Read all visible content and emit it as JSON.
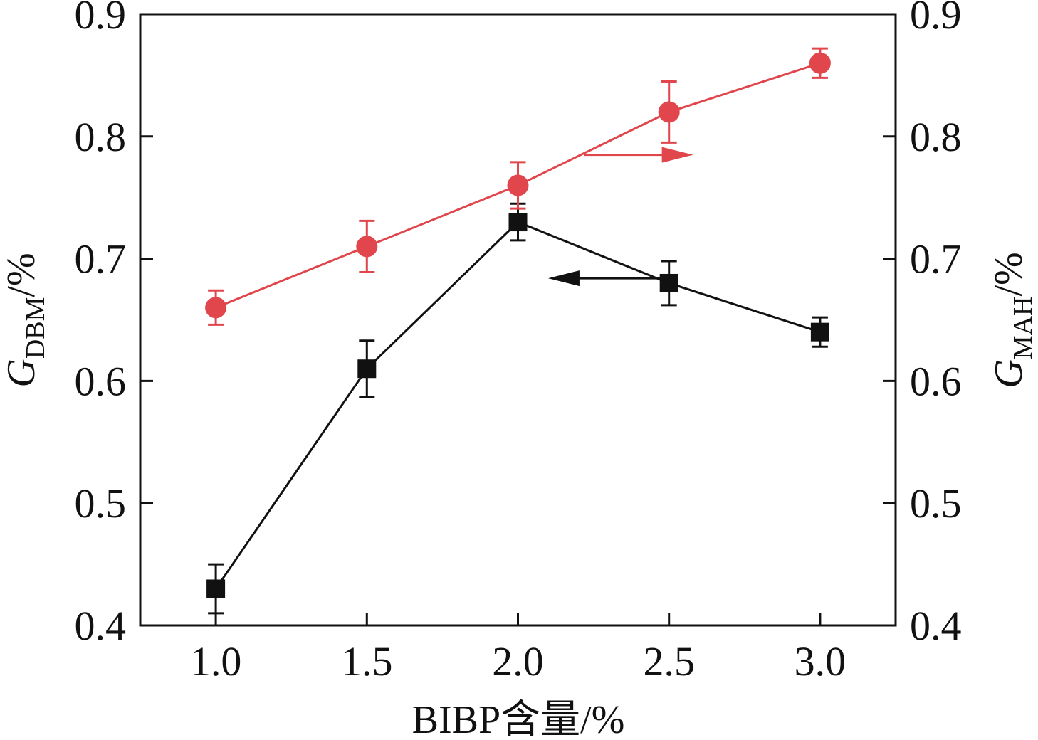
{
  "chart_data": {
    "type": "line",
    "xlabel": "BIBP含量/%",
    "ylabel_left": {
      "symbol": "G",
      "subscript": "DBM",
      "unit": "/%"
    },
    "ylabel_right": {
      "symbol": "G",
      "subscript": "MAH",
      "unit": "/%"
    },
    "x": [
      1.0,
      1.5,
      2.0,
      2.5,
      3.0
    ],
    "x_tick_labels": [
      "1.0",
      "1.5",
      "2.0",
      "2.5",
      "3.0"
    ],
    "xlim": [
      0.75,
      3.25
    ],
    "ylim_left": [
      0.4,
      0.9
    ],
    "ylim_right": [
      0.4,
      0.9
    ],
    "y_tick_labels": [
      "0.4",
      "0.5",
      "0.6",
      "0.7",
      "0.8",
      "0.9"
    ],
    "grid": false,
    "series": [
      {
        "axis": "left",
        "color": "#111111",
        "marker": "square",
        "values": [
          0.43,
          0.61,
          0.73,
          0.68,
          0.64
        ],
        "errors": [
          0.02,
          0.023,
          0.015,
          0.018,
          0.012
        ]
      },
      {
        "axis": "right",
        "color": "#e0464b",
        "marker": "circle",
        "values": [
          0.66,
          0.71,
          0.76,
          0.82,
          0.86
        ],
        "errors": [
          0.014,
          0.021,
          0.019,
          0.025,
          0.012
        ]
      }
    ],
    "annotations": [
      {
        "type": "arrow",
        "direction": "right",
        "series_axis": "right",
        "from": [
          2.22,
          0.785
        ],
        "to": [
          2.58,
          0.785
        ]
      },
      {
        "type": "arrow",
        "direction": "left",
        "series_axis": "left",
        "from": [
          2.49,
          0.684
        ],
        "to": [
          2.1,
          0.684
        ]
      }
    ]
  }
}
